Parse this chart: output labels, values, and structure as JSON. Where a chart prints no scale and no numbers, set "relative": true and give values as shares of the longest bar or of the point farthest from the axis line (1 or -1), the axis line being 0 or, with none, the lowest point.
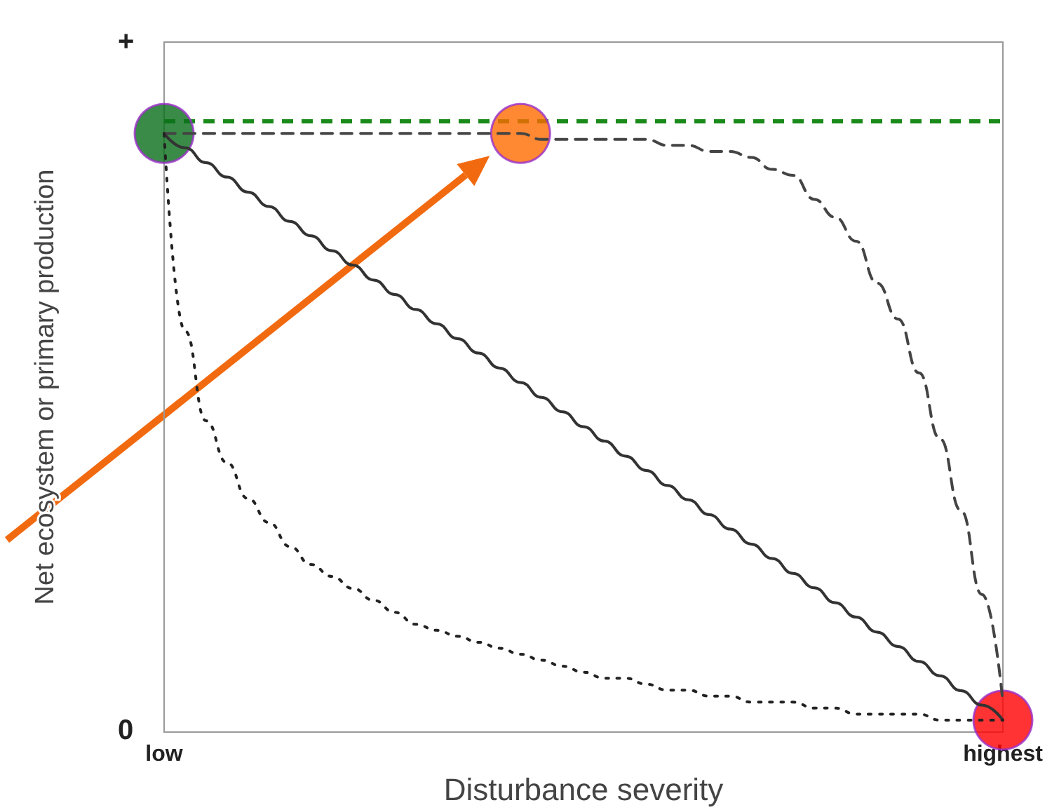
{
  "chart_data": {
    "type": "line",
    "relative": true,
    "xlabel": "Disturbance severity",
    "ylabel": "Net ecosystem or primary production",
    "annotations": [
      "+",
      "0"
    ],
    "categories": [
      "low",
      null,
      null,
      null,
      null,
      null,
      null,
      null,
      null,
      null,
      null,
      null,
      null,
      null,
      null,
      null,
      null,
      null,
      null,
      null,
      null,
      null,
      null,
      null,
      null,
      null,
      null,
      null,
      null,
      null,
      null,
      null,
      null,
      null,
      null,
      null,
      null,
      null,
      null,
      null,
      "highest"
    ],
    "grid": false,
    "ref_lines": [
      {
        "axis": "y",
        "value": 1.02,
        "color": "#1a8a1a",
        "line_style": "dashed"
      }
    ],
    "series": [
      {
        "color": "#333333",
        "line_style": "solid",
        "marker": "none",
        "values": [
          1,
          0.976,
          0.951,
          0.927,
          0.902,
          0.878,
          0.853,
          0.829,
          0.804,
          0.78,
          0.755,
          0.731,
          0.706,
          0.682,
          0.657,
          0.633,
          0.608,
          0.584,
          0.559,
          0.535,
          0.51,
          0.486,
          0.461,
          0.437,
          0.412,
          0.388,
          0.363,
          0.339,
          0.314,
          0.29,
          0.265,
          0.241,
          0.216,
          0.192,
          0.167,
          0.143,
          0.118,
          0.094,
          0.069,
          0.045,
          0.02
        ]
      },
      {
        "color": "#444444",
        "line_style": "dashed",
        "marker": "none",
        "values": [
          1,
          1,
          1,
          1,
          1,
          1,
          1,
          1,
          1,
          1,
          1,
          1,
          1,
          1,
          1,
          1,
          1,
          1,
          0.99,
          0.99,
          0.99,
          0.99,
          0.99,
          0.99,
          0.98,
          0.98,
          0.97,
          0.97,
          0.96,
          0.94,
          0.93,
          0.89,
          0.86,
          0.82,
          0.75,
          0.69,
          0.6,
          0.49,
          0.37,
          0.23,
          0.05
        ]
      },
      {
        "color": "#222222",
        "line_style": "dotted",
        "marker": "none",
        "values": [
          1,
          0.67,
          0.52,
          0.45,
          0.39,
          0.35,
          0.31,
          0.28,
          0.26,
          0.24,
          0.22,
          0.2,
          0.18,
          0.17,
          0.16,
          0.15,
          0.14,
          0.13,
          0.12,
          0.11,
          0.1,
          0.09,
          0.09,
          0.08,
          0.07,
          0.07,
          0.06,
          0.06,
          0.05,
          0.05,
          0.05,
          0.04,
          0.04,
          0.03,
          0.03,
          0.03,
          0.03,
          0.02,
          0.02,
          0.02,
          0.02
        ]
      },
      {
        "type": "scatter",
        "marker": "circle",
        "values": [
          1,
          null,
          null,
          null,
          null,
          null,
          null,
          null,
          null,
          null,
          null,
          null,
          null,
          null,
          null,
          null,
          null,
          1,
          null,
          null,
          null,
          null,
          null,
          null,
          null,
          null,
          null,
          null,
          null,
          null,
          null,
          null,
          null,
          null,
          null,
          null,
          null,
          null,
          null,
          null,
          0.02
        ],
        "colors": [
          "#0a6e1a",
          null,
          null,
          null,
          null,
          null,
          null,
          null,
          null,
          null,
          null,
          null,
          null,
          null,
          null,
          null,
          null,
          "#ff6a00",
          null,
          null,
          null,
          null,
          null,
          null,
          null,
          null,
          null,
          null,
          null,
          null,
          null,
          null,
          null,
          null,
          null,
          null,
          null,
          null,
          null,
          null,
          "#ff0000"
        ]
      }
    ]
  }
}
